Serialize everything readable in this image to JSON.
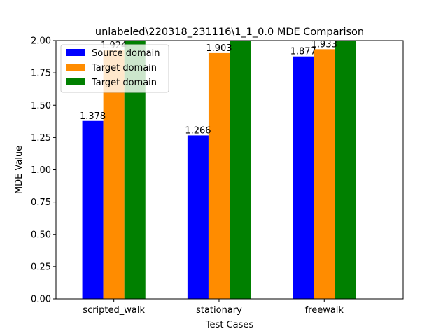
{
  "chart_data": {
    "type": "bar",
    "title": "unlabeled\\220318_231116\\1_1_0.0 MDE Comparison",
    "xlabel": "Test Cases",
    "ylabel": "MDE Value",
    "categories": [
      "scripted_walk",
      "stationary",
      "freewalk"
    ],
    "ylim": [
      0,
      2.0
    ],
    "yticks": [
      0.0,
      0.25,
      0.5,
      0.75,
      1.0,
      1.25,
      1.5,
      1.75,
      2.0
    ],
    "ytick_labels": [
      "0.00",
      "0.25",
      "0.50",
      "0.75",
      "1.00",
      "1.25",
      "1.50",
      "1.75",
      "2.00"
    ],
    "series": [
      {
        "name": "Source domain",
        "color": "#0000ff",
        "values": [
          1.378,
          1.266,
          1.877
        ],
        "labels": [
          "1.378",
          "1.266",
          "1.877"
        ]
      },
      {
        "name": "Target domain",
        "color": "#ff8c00",
        "values": [
          1.924,
          1.903,
          1.933
        ],
        "labels": [
          "1.924",
          "1.903",
          "1.933"
        ]
      },
      {
        "name": "Target domain",
        "color": "#008000",
        "values": [
          2.0,
          2.0,
          2.0
        ],
        "labels": [
          "",
          "",
          ""
        ]
      }
    ],
    "legend": "upper-left",
    "grid": false
  }
}
